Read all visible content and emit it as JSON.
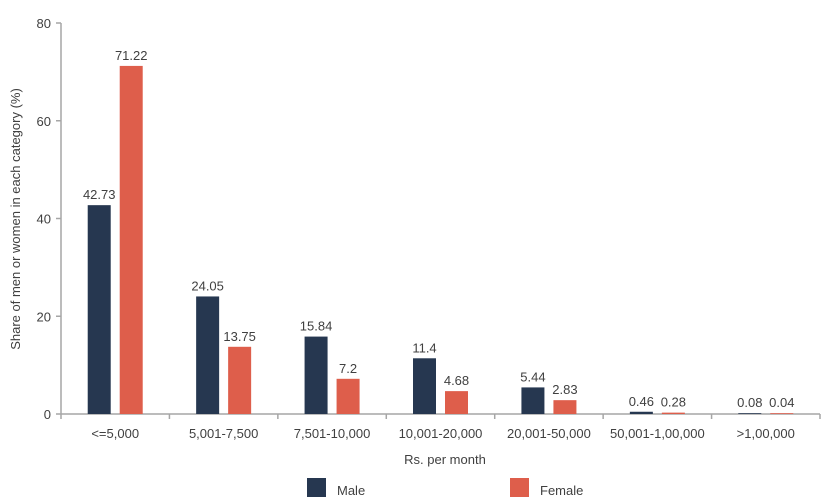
{
  "chart_data": {
    "type": "bar",
    "title": "",
    "xlabel": "Rs. per month",
    "ylabel": "Share of men or women in each category (%)",
    "ylim": [
      0,
      80
    ],
    "yticks": [
      0,
      20,
      40,
      60,
      80
    ],
    "categories": [
      "<=5,000",
      "5,001-7,500",
      "7,501-10,000",
      "10,001-20,000",
      "20,001-50,000",
      "50,001-1,00,000",
      ">1,00,000"
    ],
    "series": [
      {
        "name": "Male",
        "color": "#263750",
        "values": [
          42.73,
          24.05,
          15.84,
          11.4,
          5.44,
          0.46,
          0.08
        ],
        "labels": [
          "42.73",
          "24.05",
          "15.84",
          "11.4",
          "5.44",
          "0.46",
          "0.08"
        ]
      },
      {
        "name": "Female",
        "color": "#de5e4b",
        "values": [
          71.22,
          13.75,
          7.2,
          4.68,
          2.83,
          0.28,
          0.04
        ],
        "labels": [
          "71.22",
          "13.75",
          "7.2",
          "4.68",
          "2.83",
          "0.28",
          "0.04"
        ]
      }
    ],
    "legend_position": "bottom",
    "grid": false
  }
}
